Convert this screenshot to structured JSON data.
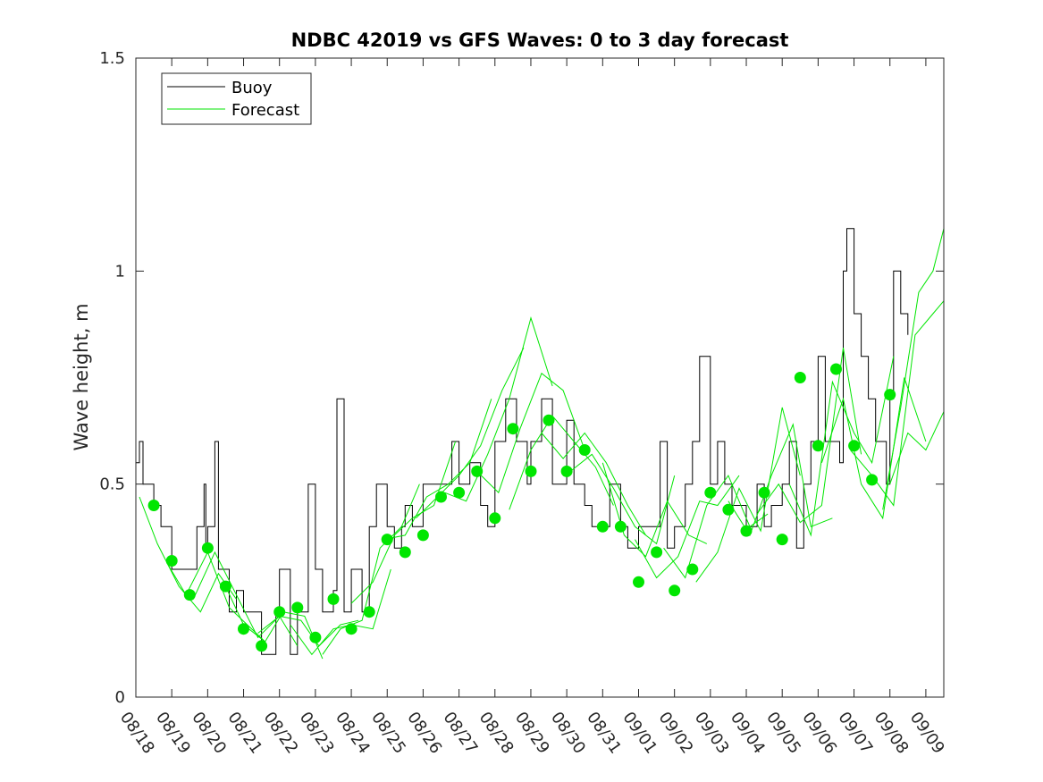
{
  "chart_data": {
    "type": "line",
    "title": "NDBC 42019 vs GFS Waves: 0 to 3 day forecast",
    "xlabel": "",
    "ylabel": "Wave height, m",
    "ylim": [
      0,
      1.5
    ],
    "y_ticks": [
      0,
      0.5,
      1,
      1.5
    ],
    "y_tick_labels": [
      "0",
      "0.5",
      "1",
      "1.5"
    ],
    "x_range_days": [
      0,
      22.5
    ],
    "x_tick_labels": [
      "08/18",
      "08/19",
      "08/20",
      "08/21",
      "08/22",
      "08/23",
      "08/24",
      "08/25",
      "08/26",
      "08/27",
      "08/28",
      "08/29",
      "08/30",
      "08/31",
      "09/01",
      "09/02",
      "09/03",
      "09/04",
      "09/05",
      "09/06",
      "09/07",
      "09/08",
      "09/09"
    ],
    "legend": {
      "position": "top-left",
      "entries": [
        "Buoy",
        "Forecast"
      ]
    },
    "colors": {
      "buoy": "#000000",
      "forecast": "#00e600",
      "axis": "#262626"
    },
    "series": [
      {
        "name": "Buoy",
        "x": [
          0.0,
          0.1,
          0.2,
          0.3,
          0.4,
          0.5,
          0.7,
          1.0,
          1.2,
          1.5,
          1.7,
          1.9,
          1.95,
          2.0,
          2.2,
          2.3,
          2.5,
          2.6,
          2.8,
          3.0,
          3.3,
          3.5,
          3.9,
          4.0,
          4.3,
          4.5,
          4.8,
          5.0,
          5.2,
          5.5,
          5.6,
          5.8,
          6.0,
          6.3,
          6.5,
          6.7,
          7.0,
          7.2,
          7.4,
          7.5,
          7.7,
          8.0,
          8.5,
          8.8,
          9.0,
          9.3,
          9.6,
          9.8,
          10.0,
          10.3,
          10.6,
          10.9,
          11.0,
          11.3,
          11.6,
          11.8,
          12.0,
          12.2,
          12.5,
          12.7,
          13.0,
          13.2,
          13.5,
          13.7,
          14.0,
          14.3,
          14.6,
          14.8,
          15.0,
          15.3,
          15.5,
          15.7,
          16.0,
          16.2,
          16.4,
          16.6,
          17.0,
          17.3,
          17.5,
          17.7,
          18.0,
          18.2,
          18.4,
          18.6,
          18.8,
          19.0,
          19.2,
          19.4,
          19.6,
          19.7,
          19.8,
          20.0,
          20.2,
          20.4,
          20.6,
          20.9,
          21.0,
          21.1,
          21.3,
          21.5
        ],
        "values": [
          0.55,
          0.6,
          0.5,
          0.5,
          0.5,
          0.45,
          0.4,
          0.3,
          0.3,
          0.3,
          0.4,
          0.5,
          0.35,
          0.4,
          0.6,
          0.3,
          0.3,
          0.2,
          0.25,
          0.2,
          0.2,
          0.1,
          0.2,
          0.3,
          0.1,
          0.2,
          0.5,
          0.3,
          0.2,
          0.25,
          0.7,
          0.2,
          0.3,
          0.2,
          0.4,
          0.5,
          0.4,
          0.35,
          0.4,
          0.45,
          0.4,
          0.5,
          0.5,
          0.6,
          0.5,
          0.55,
          0.45,
          0.4,
          0.6,
          0.7,
          0.6,
          0.5,
          0.6,
          0.7,
          0.5,
          0.5,
          0.65,
          0.5,
          0.45,
          0.4,
          0.4,
          0.5,
          0.4,
          0.35,
          0.4,
          0.4,
          0.6,
          0.35,
          0.4,
          0.5,
          0.6,
          0.8,
          0.5,
          0.6,
          0.5,
          0.45,
          0.4,
          0.5,
          0.4,
          0.45,
          0.5,
          0.6,
          0.35,
          0.5,
          0.6,
          0.8,
          0.6,
          0.6,
          0.55,
          1.0,
          1.1,
          0.9,
          0.8,
          0.7,
          0.6,
          0.5,
          0.7,
          1.0,
          0.9,
          0.85
        ]
      },
      {
        "name": "Forecast",
        "x": [
          0.1,
          0.6,
          1.2,
          1.8,
          2.3,
          2.8
        ],
        "values": [
          0.47,
          0.36,
          0.26,
          0.2,
          0.29,
          0.23
        ]
      },
      {
        "name": "Forecast",
        "x": [
          0.9,
          1.4,
          2.0,
          2.6,
          3.1,
          3.6
        ],
        "values": [
          0.31,
          0.24,
          0.34,
          0.21,
          0.17,
          0.13
        ]
      },
      {
        "name": "Forecast",
        "x": [
          1.6,
          2.2,
          2.8,
          3.4,
          4.0,
          4.5
        ],
        "values": [
          0.23,
          0.34,
          0.24,
          0.14,
          0.19,
          0.12
        ]
      },
      {
        "name": "Forecast",
        "x": [
          2.5,
          3.0,
          3.6,
          4.1,
          4.7,
          5.2
        ],
        "values": [
          0.26,
          0.17,
          0.13,
          0.2,
          0.19,
          0.09
        ]
      },
      {
        "name": "Forecast",
        "x": [
          3.4,
          4.0,
          4.6,
          5.1,
          5.7,
          6.2
        ],
        "values": [
          0.15,
          0.19,
          0.18,
          0.12,
          0.17,
          0.18
        ]
      },
      {
        "name": "Forecast",
        "x": [
          4.3,
          4.9,
          5.5,
          6.0,
          6.6,
          7.1
        ],
        "values": [
          0.17,
          0.1,
          0.16,
          0.17,
          0.16,
          0.3
        ]
      },
      {
        "name": "Forecast",
        "x": [
          5.2,
          5.7,
          6.3,
          6.8,
          7.4,
          7.9
        ],
        "values": [
          0.1,
          0.16,
          0.18,
          0.35,
          0.4,
          0.5
        ]
      },
      {
        "name": "Forecast",
        "x": [
          6.0,
          6.6,
          7.2,
          7.7,
          8.3,
          8.9
        ],
        "values": [
          0.22,
          0.27,
          0.38,
          0.42,
          0.45,
          0.6
        ]
      },
      {
        "name": "Forecast",
        "x": [
          6.9,
          7.5,
          8.1,
          8.7,
          9.3,
          9.9
        ],
        "values": [
          0.37,
          0.38,
          0.47,
          0.5,
          0.55,
          0.7
        ]
      },
      {
        "name": "Forecast",
        "x": [
          7.8,
          8.4,
          9.0,
          9.6,
          10.2,
          10.8
        ],
        "values": [
          0.42,
          0.47,
          0.52,
          0.59,
          0.72,
          0.82
        ]
      },
      {
        "name": "Forecast",
        "x": [
          8.6,
          9.2,
          9.8,
          10.4,
          11.0,
          11.6
        ],
        "values": [
          0.48,
          0.46,
          0.57,
          0.7,
          0.89,
          0.73
        ]
      },
      {
        "name": "Forecast",
        "x": [
          9.5,
          10.1,
          10.7,
          11.3,
          11.9,
          12.5
        ],
        "values": [
          0.53,
          0.48,
          0.63,
          0.76,
          0.72,
          0.58
        ]
      },
      {
        "name": "Forecast",
        "x": [
          10.4,
          11.0,
          11.6,
          12.2,
          12.8,
          13.3
        ],
        "values": [
          0.44,
          0.58,
          0.66,
          0.6,
          0.54,
          0.45
        ]
      },
      {
        "name": "Forecast",
        "x": [
          11.3,
          11.9,
          12.5,
          13.1,
          13.7,
          14.2
        ],
        "values": [
          0.62,
          0.56,
          0.62,
          0.55,
          0.45,
          0.38
        ]
      },
      {
        "name": "Forecast",
        "x": [
          12.1,
          12.7,
          13.3,
          13.9,
          14.5,
          15.0
        ],
        "values": [
          0.53,
          0.57,
          0.49,
          0.4,
          0.36,
          0.52
        ]
      },
      {
        "name": "Forecast",
        "x": [
          13.0,
          13.6,
          14.2,
          14.8,
          15.4,
          15.9
        ],
        "values": [
          0.55,
          0.38,
          0.33,
          0.46,
          0.38,
          0.36
        ]
      },
      {
        "name": "Forecast",
        "x": [
          13.9,
          14.5,
          15.1,
          15.7,
          16.2,
          16.8
        ],
        "values": [
          0.37,
          0.28,
          0.33,
          0.46,
          0.45,
          0.52
        ]
      },
      {
        "name": "Forecast",
        "x": [
          14.7,
          15.3,
          15.9,
          16.5,
          17.1,
          17.6
        ],
        "values": [
          0.35,
          0.28,
          0.45,
          0.52,
          0.4,
          0.43
        ]
      },
      {
        "name": "Forecast",
        "x": [
          15.6,
          16.2,
          16.8,
          17.4,
          18.0,
          18.5
        ],
        "values": [
          0.27,
          0.34,
          0.49,
          0.39,
          0.68,
          0.52
        ]
      },
      {
        "name": "Forecast",
        "x": [
          16.5,
          17.1,
          17.7,
          18.3,
          18.8,
          19.4
        ],
        "values": [
          0.46,
          0.38,
          0.52,
          0.64,
          0.4,
          0.42
        ]
      },
      {
        "name": "Forecast",
        "x": [
          17.3,
          17.9,
          18.5,
          19.1,
          19.7,
          20.2
        ],
        "values": [
          0.43,
          0.5,
          0.41,
          0.45,
          0.82,
          0.57
        ]
      },
      {
        "name": "Forecast",
        "x": [
          18.2,
          18.8,
          19.4,
          20.0,
          20.5,
          21.1
        ],
        "values": [
          0.5,
          0.38,
          0.74,
          0.62,
          0.55,
          0.8
        ]
      },
      {
        "name": "Forecast",
        "x": [
          19.1,
          19.7,
          20.2,
          20.8,
          21.4,
          22.0
        ],
        "values": [
          0.55,
          0.7,
          0.5,
          0.42,
          0.75,
          0.6
        ]
      },
      {
        "name": "Forecast",
        "x": [
          19.9,
          20.5,
          21.1,
          21.7,
          22.2,
          22.5
        ],
        "values": [
          0.58,
          0.52,
          0.45,
          0.85,
          0.9,
          0.93
        ]
      },
      {
        "name": "Forecast",
        "x": [
          20.8,
          21.3,
          21.8,
          22.2,
          22.5
        ],
        "values": [
          0.44,
          0.68,
          0.95,
          1.0,
          1.1
        ]
      },
      {
        "name": "Forecast",
        "x": [
          21.0,
          21.5,
          22.0,
          22.5
        ],
        "values": [
          0.5,
          0.62,
          0.58,
          0.67
        ]
      }
    ],
    "markers": {
      "name": "Forecast analysis points",
      "x": [
        0.5,
        1.0,
        1.5,
        2.0,
        2.5,
        3.0,
        3.5,
        4.0,
        4.5,
        5.0,
        5.5,
        6.0,
        6.5,
        7.0,
        7.5,
        8.0,
        8.5,
        9.0,
        9.5,
        10.0,
        10.5,
        11.0,
        11.5,
        12.0,
        12.5,
        13.0,
        13.5,
        14.0,
        14.5,
        15.0,
        15.5,
        16.0,
        16.5,
        17.0,
        17.5,
        18.0,
        18.5,
        19.0,
        19.5,
        20.0,
        20.5,
        21.0
      ],
      "values": [
        0.45,
        0.32,
        0.24,
        0.35,
        0.26,
        0.16,
        0.12,
        0.2,
        0.21,
        0.14,
        0.23,
        0.16,
        0.2,
        0.37,
        0.34,
        0.38,
        0.47,
        0.48,
        0.53,
        0.42,
        0.63,
        0.53,
        0.65,
        0.53,
        0.58,
        0.4,
        0.4,
        0.27,
        0.34,
        0.25,
        0.3,
        0.48,
        0.44,
        0.39,
        0.48,
        0.37,
        0.75,
        0.59,
        0.77,
        0.59,
        0.51,
        0.71
      ]
    }
  }
}
